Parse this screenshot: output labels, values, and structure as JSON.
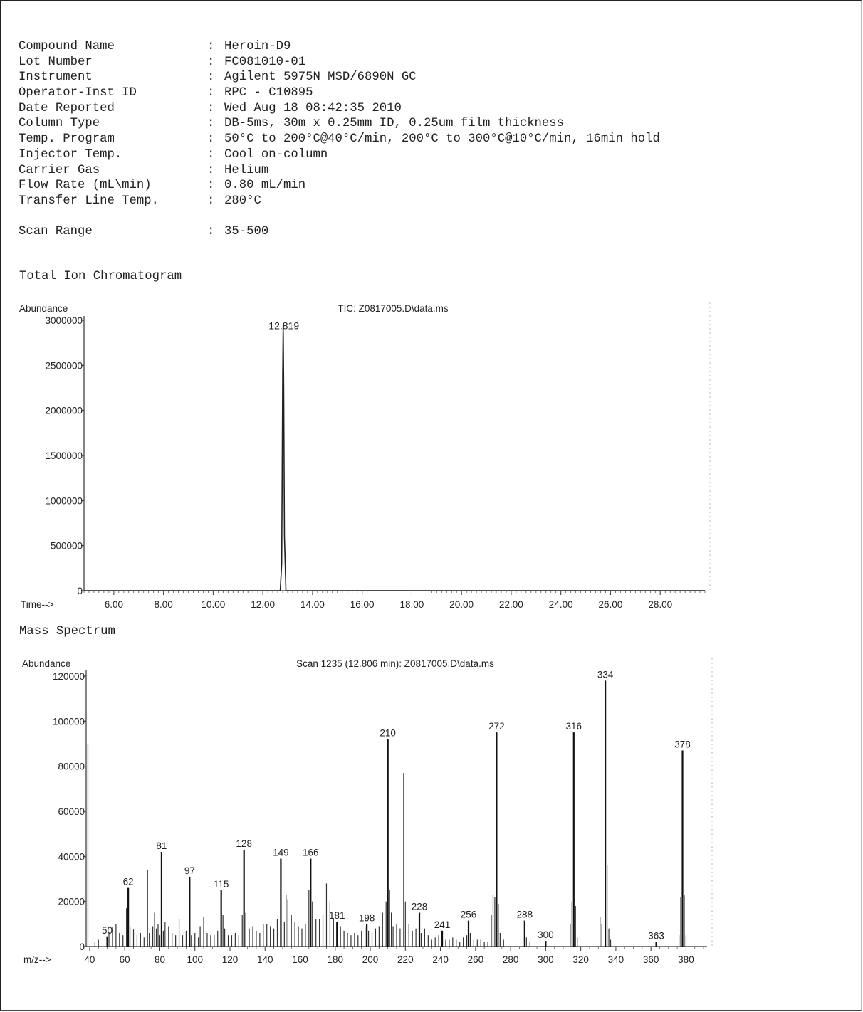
{
  "info": [
    {
      "label": "Compound Name",
      "value": "Heroin-D9"
    },
    {
      "label": "Lot Number",
      "value": "FC081010-01"
    },
    {
      "label": "Instrument",
      "value": "Agilent 5975N MSD/6890N GC"
    },
    {
      "label": "Operator-Inst ID",
      "value": "RPC - C10895"
    },
    {
      "label": "Date Reported",
      "value": "Wed Aug 18 08:42:35 2010"
    },
    {
      "label": "Column Type",
      "value": "DB-5ms, 30m x 0.25mm ID, 0.25um film thickness"
    },
    {
      "label": "Temp. Program",
      "value": "50°C to 200°C@40°C/min, 200°C to 300°C@10°C/min, 16min hold"
    },
    {
      "label": "Injector Temp.",
      "value": "Cool on-column"
    },
    {
      "label": "Carrier Gas",
      "value": "Helium"
    },
    {
      "label": "Flow Rate (mL\\min)",
      "value": "0.80 mL/min"
    },
    {
      "label": "Transfer Line Temp.",
      "value": "280°C"
    }
  ],
  "scan_range": {
    "label": "Scan Range",
    "value": "35-500"
  },
  "separator": ":",
  "sections": {
    "tic": "Total Ion Chromatogram",
    "ms": "Mass Spectrum"
  },
  "chart_data": [
    {
      "type": "line",
      "title": "TIC: Z0817005.D\\data.ms",
      "ylabel": "Abundance",
      "xlabel": "Time-->",
      "xlim": [
        4.8,
        29.8
      ],
      "ylim": [
        0,
        3000000
      ],
      "xticks": [
        "6.00",
        "8.00",
        "10.00",
        "12.00",
        "14.00",
        "16.00",
        "18.00",
        "20.00",
        "22.00",
        "24.00",
        "26.00",
        "28.00"
      ],
      "yticks": [
        "0",
        "500000",
        "1000000",
        "1500000",
        "2000000",
        "2500000",
        "3000000"
      ],
      "peaks": [
        {
          "x": 12.819,
          "y": 2950000,
          "label": "12.819"
        }
      ],
      "series": [
        {
          "x": [
            4.8,
            12.7,
            12.76,
            12.8,
            12.819,
            12.84,
            12.87,
            12.93,
            29.8
          ],
          "y": [
            0,
            0,
            300000,
            2400000,
            2950000,
            2200000,
            600000,
            0,
            0
          ]
        }
      ]
    },
    {
      "type": "bar",
      "title": "Scan 1235 (12.806 min): Z0817005.D\\data.ms",
      "ylabel": "Abundance",
      "xlabel": "m/z-->",
      "xlim": [
        38,
        392
      ],
      "ylim": [
        0,
        120000
      ],
      "xticks": [
        "40",
        "60",
        "80",
        "100",
        "120",
        "140",
        "160",
        "180",
        "200",
        "220",
        "240",
        "260",
        "280",
        "300",
        "320",
        "340",
        "360",
        "380"
      ],
      "yticks": [
        "0",
        "20000",
        "40000",
        "60000",
        "80000",
        "100000",
        "120000"
      ],
      "labeled_peaks": [
        {
          "mz": 50,
          "abundance": 4500,
          "label": "50"
        },
        {
          "mz": 62,
          "abundance": 26000,
          "label": "62"
        },
        {
          "mz": 81,
          "abundance": 42000,
          "label": "81"
        },
        {
          "mz": 97,
          "abundance": 31000,
          "label": "97"
        },
        {
          "mz": 115,
          "abundance": 25000,
          "label": "115"
        },
        {
          "mz": 128,
          "abundance": 43000,
          "label": "128"
        },
        {
          "mz": 149,
          "abundance": 39000,
          "label": "149"
        },
        {
          "mz": 166,
          "abundance": 39000,
          "label": "166"
        },
        {
          "mz": 181,
          "abundance": 11000,
          "label": "181"
        },
        {
          "mz": 198,
          "abundance": 10000,
          "label": "198"
        },
        {
          "mz": 210,
          "abundance": 92000,
          "label": "210"
        },
        {
          "mz": 228,
          "abundance": 15000,
          "label": "228"
        },
        {
          "mz": 241,
          "abundance": 7000,
          "label": "241"
        },
        {
          "mz": 256,
          "abundance": 11500,
          "label": "256"
        },
        {
          "mz": 272,
          "abundance": 95000,
          "label": "272"
        },
        {
          "mz": 288,
          "abundance": 11500,
          "label": "288"
        },
        {
          "mz": 300,
          "abundance": 2500,
          "label": "300"
        },
        {
          "mz": 316,
          "abundance": 95000,
          "label": "316"
        },
        {
          "mz": 334,
          "abundance": 118000,
          "label": "334"
        },
        {
          "mz": 363,
          "abundance": 2000,
          "label": "363"
        },
        {
          "mz": 378,
          "abundance": 87000,
          "label": "378"
        }
      ],
      "other_peaks": [
        {
          "mz": 39,
          "abundance": 90000
        },
        {
          "mz": 43,
          "abundance": 2000
        },
        {
          "mz": 45,
          "abundance": 3000
        },
        {
          "mz": 51,
          "abundance": 6500
        },
        {
          "mz": 53,
          "abundance": 8500
        },
        {
          "mz": 55,
          "abundance": 10000
        },
        {
          "mz": 57,
          "abundance": 6000
        },
        {
          "mz": 59,
          "abundance": 5000
        },
        {
          "mz": 61,
          "abundance": 17000
        },
        {
          "mz": 63,
          "abundance": 9000
        },
        {
          "mz": 65,
          "abundance": 7500
        },
        {
          "mz": 67,
          "abundance": 5000
        },
        {
          "mz": 69,
          "abundance": 6000
        },
        {
          "mz": 71,
          "abundance": 4000
        },
        {
          "mz": 73,
          "abundance": 34000
        },
        {
          "mz": 74,
          "abundance": 6000
        },
        {
          "mz": 76,
          "abundance": 9000
        },
        {
          "mz": 77,
          "abundance": 15000
        },
        {
          "mz": 78,
          "abundance": 8000
        },
        {
          "mz": 79,
          "abundance": 10000
        },
        {
          "mz": 80,
          "abundance": 5000
        },
        {
          "mz": 82,
          "abundance": 7000
        },
        {
          "mz": 83,
          "abundance": 11000
        },
        {
          "mz": 85,
          "abundance": 9000
        },
        {
          "mz": 87,
          "abundance": 6000
        },
        {
          "mz": 89,
          "abundance": 5000
        },
        {
          "mz": 91,
          "abundance": 12000
        },
        {
          "mz": 93,
          "abundance": 5000
        },
        {
          "mz": 95,
          "abundance": 7000
        },
        {
          "mz": 98,
          "abundance": 5000
        },
        {
          "mz": 100,
          "abundance": 6000
        },
        {
          "mz": 102,
          "abundance": 4000
        },
        {
          "mz": 103,
          "abundance": 9000
        },
        {
          "mz": 105,
          "abundance": 13000
        },
        {
          "mz": 107,
          "abundance": 6000
        },
        {
          "mz": 109,
          "abundance": 5000
        },
        {
          "mz": 111,
          "abundance": 5000
        },
        {
          "mz": 113,
          "abundance": 7000
        },
        {
          "mz": 116,
          "abundance": 14000
        },
        {
          "mz": 117,
          "abundance": 8000
        },
        {
          "mz": 119,
          "abundance": 5000
        },
        {
          "mz": 121,
          "abundance": 5000
        },
        {
          "mz": 123,
          "abundance": 6000
        },
        {
          "mz": 125,
          "abundance": 5000
        },
        {
          "mz": 127,
          "abundance": 14000
        },
        {
          "mz": 129,
          "abundance": 15000
        },
        {
          "mz": 131,
          "abundance": 8000
        },
        {
          "mz": 133,
          "abundance": 9000
        },
        {
          "mz": 135,
          "abundance": 7000
        },
        {
          "mz": 137,
          "abundance": 6000
        },
        {
          "mz": 139,
          "abundance": 10000
        },
        {
          "mz": 141,
          "abundance": 10000
        },
        {
          "mz": 143,
          "abundance": 9000
        },
        {
          "mz": 145,
          "abundance": 8000
        },
        {
          "mz": 147,
          "abundance": 12000
        },
        {
          "mz": 151,
          "abundance": 11000
        },
        {
          "mz": 152,
          "abundance": 23000
        },
        {
          "mz": 153,
          "abundance": 21000
        },
        {
          "mz": 155,
          "abundance": 14000
        },
        {
          "mz": 157,
          "abundance": 11000
        },
        {
          "mz": 159,
          "abundance": 9000
        },
        {
          "mz": 161,
          "abundance": 8000
        },
        {
          "mz": 163,
          "abundance": 10000
        },
        {
          "mz": 165,
          "abundance": 25000
        },
        {
          "mz": 167,
          "abundance": 20000
        },
        {
          "mz": 169,
          "abundance": 12000
        },
        {
          "mz": 171,
          "abundance": 12000
        },
        {
          "mz": 173,
          "abundance": 14000
        },
        {
          "mz": 175,
          "abundance": 28000
        },
        {
          "mz": 177,
          "abundance": 20000
        },
        {
          "mz": 179,
          "abundance": 12000
        },
        {
          "mz": 183,
          "abundance": 9000
        },
        {
          "mz": 185,
          "abundance": 7000
        },
        {
          "mz": 187,
          "abundance": 6000
        },
        {
          "mz": 189,
          "abundance": 5000
        },
        {
          "mz": 191,
          "abundance": 6000
        },
        {
          "mz": 193,
          "abundance": 5000
        },
        {
          "mz": 195,
          "abundance": 7000
        },
        {
          "mz": 197,
          "abundance": 9000
        },
        {
          "mz": 199,
          "abundance": 7000
        },
        {
          "mz": 201,
          "abundance": 6000
        },
        {
          "mz": 203,
          "abundance": 8000
        },
        {
          "mz": 205,
          "abundance": 9000
        },
        {
          "mz": 207,
          "abundance": 15000
        },
        {
          "mz": 209,
          "abundance": 20000
        },
        {
          "mz": 211,
          "abundance": 25000
        },
        {
          "mz": 212,
          "abundance": 15000
        },
        {
          "mz": 213,
          "abundance": 9000
        },
        {
          "mz": 215,
          "abundance": 10000
        },
        {
          "mz": 217,
          "abundance": 8000
        },
        {
          "mz": 219,
          "abundance": 77000
        },
        {
          "mz": 220,
          "abundance": 20000
        },
        {
          "mz": 222,
          "abundance": 10000
        },
        {
          "mz": 224,
          "abundance": 7000
        },
        {
          "mz": 226,
          "abundance": 8000
        },
        {
          "mz": 229,
          "abundance": 6000
        },
        {
          "mz": 231,
          "abundance": 8000
        },
        {
          "mz": 233,
          "abundance": 5000
        },
        {
          "mz": 235,
          "abundance": 3000
        },
        {
          "mz": 237,
          "abundance": 4000
        },
        {
          "mz": 239,
          "abundance": 5000
        },
        {
          "mz": 243,
          "abundance": 3000
        },
        {
          "mz": 245,
          "abundance": 3000
        },
        {
          "mz": 247,
          "abundance": 4000
        },
        {
          "mz": 249,
          "abundance": 3000
        },
        {
          "mz": 251,
          "abundance": 2000
        },
        {
          "mz": 253,
          "abundance": 4000
        },
        {
          "mz": 255,
          "abundance": 5000
        },
        {
          "mz": 257,
          "abundance": 6000
        },
        {
          "mz": 259,
          "abundance": 3000
        },
        {
          "mz": 261,
          "abundance": 3000
        },
        {
          "mz": 263,
          "abundance": 3000
        },
        {
          "mz": 265,
          "abundance": 2000
        },
        {
          "mz": 267,
          "abundance": 2000
        },
        {
          "mz": 269,
          "abundance": 14000
        },
        {
          "mz": 270,
          "abundance": 23000
        },
        {
          "mz": 271,
          "abundance": 22000
        },
        {
          "mz": 273,
          "abundance": 19000
        },
        {
          "mz": 274,
          "abundance": 6000
        },
        {
          "mz": 276,
          "abundance": 3000
        },
        {
          "mz": 289,
          "abundance": 4000
        },
        {
          "mz": 291,
          "abundance": 2000
        },
        {
          "mz": 314,
          "abundance": 10000
        },
        {
          "mz": 315,
          "abundance": 20000
        },
        {
          "mz": 317,
          "abundance": 18000
        },
        {
          "mz": 318,
          "abundance": 4000
        },
        {
          "mz": 331,
          "abundance": 13000
        },
        {
          "mz": 332,
          "abundance": 10000
        },
        {
          "mz": 335,
          "abundance": 36000
        },
        {
          "mz": 336,
          "abundance": 8000
        },
        {
          "mz": 337,
          "abundance": 3000
        },
        {
          "mz": 376,
          "abundance": 5000
        },
        {
          "mz": 377,
          "abundance": 22000
        },
        {
          "mz": 379,
          "abundance": 23000
        },
        {
          "mz": 380,
          "abundance": 5000
        }
      ]
    }
  ]
}
